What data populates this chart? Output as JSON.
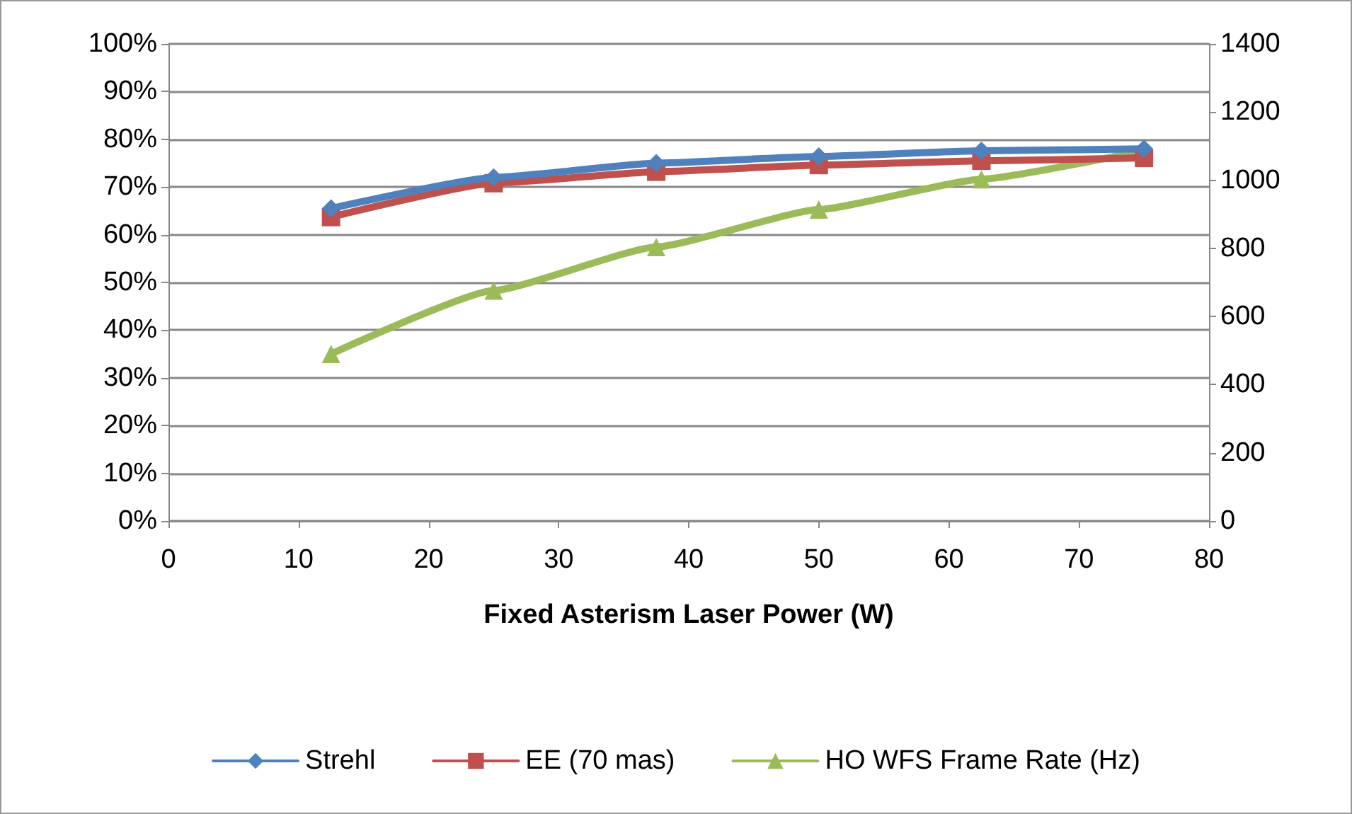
{
  "chart_data": {
    "type": "line",
    "xlabel": "Fixed Asterism Laser Power (W)",
    "x": [
      12.5,
      25,
      37.5,
      50,
      62.5,
      75
    ],
    "series": [
      {
        "name": "Strehl",
        "color": "#4f81bd",
        "marker": "diamond",
        "values": [
          65.5,
          72,
          75,
          76.4,
          77.6,
          78
        ]
      },
      {
        "name": "EE (70 mas)",
        "color": "#c0504d",
        "marker": "square",
        "values": [
          63.7,
          70.8,
          73.2,
          74.6,
          75.5,
          76.1
        ]
      },
      {
        "name": "HO WFS Frame Rate (Hz)",
        "color": "#9bbb59",
        "marker": "triangle",
        "axis": "y2",
        "values": [
          490,
          676,
          804,
          914,
          1003,
          1087
        ]
      }
    ],
    "xlim": [
      0,
      80
    ],
    "xticks": [
      0,
      10,
      20,
      30,
      40,
      50,
      60,
      70,
      80
    ],
    "ylim": [
      0,
      100
    ],
    "yticks": [
      {
        "value": 0,
        "label": "0%"
      },
      {
        "value": 10,
        "label": "10%"
      },
      {
        "value": 20,
        "label": "20%"
      },
      {
        "value": 30,
        "label": "30%"
      },
      {
        "value": 40,
        "label": "40%"
      },
      {
        "value": 50,
        "label": "50%"
      },
      {
        "value": 60,
        "label": "60%"
      },
      {
        "value": 70,
        "label": "70%"
      },
      {
        "value": 80,
        "label": "80%"
      },
      {
        "value": 90,
        "label": "90%"
      },
      {
        "value": 100,
        "label": "100%"
      }
    ],
    "y2lim": [
      0,
      1400
    ],
    "y2ticks": [
      0,
      200,
      400,
      600,
      800,
      1000,
      1200,
      1400
    ],
    "grid": "y",
    "legend": "bottom",
    "line_style": "solid"
  }
}
